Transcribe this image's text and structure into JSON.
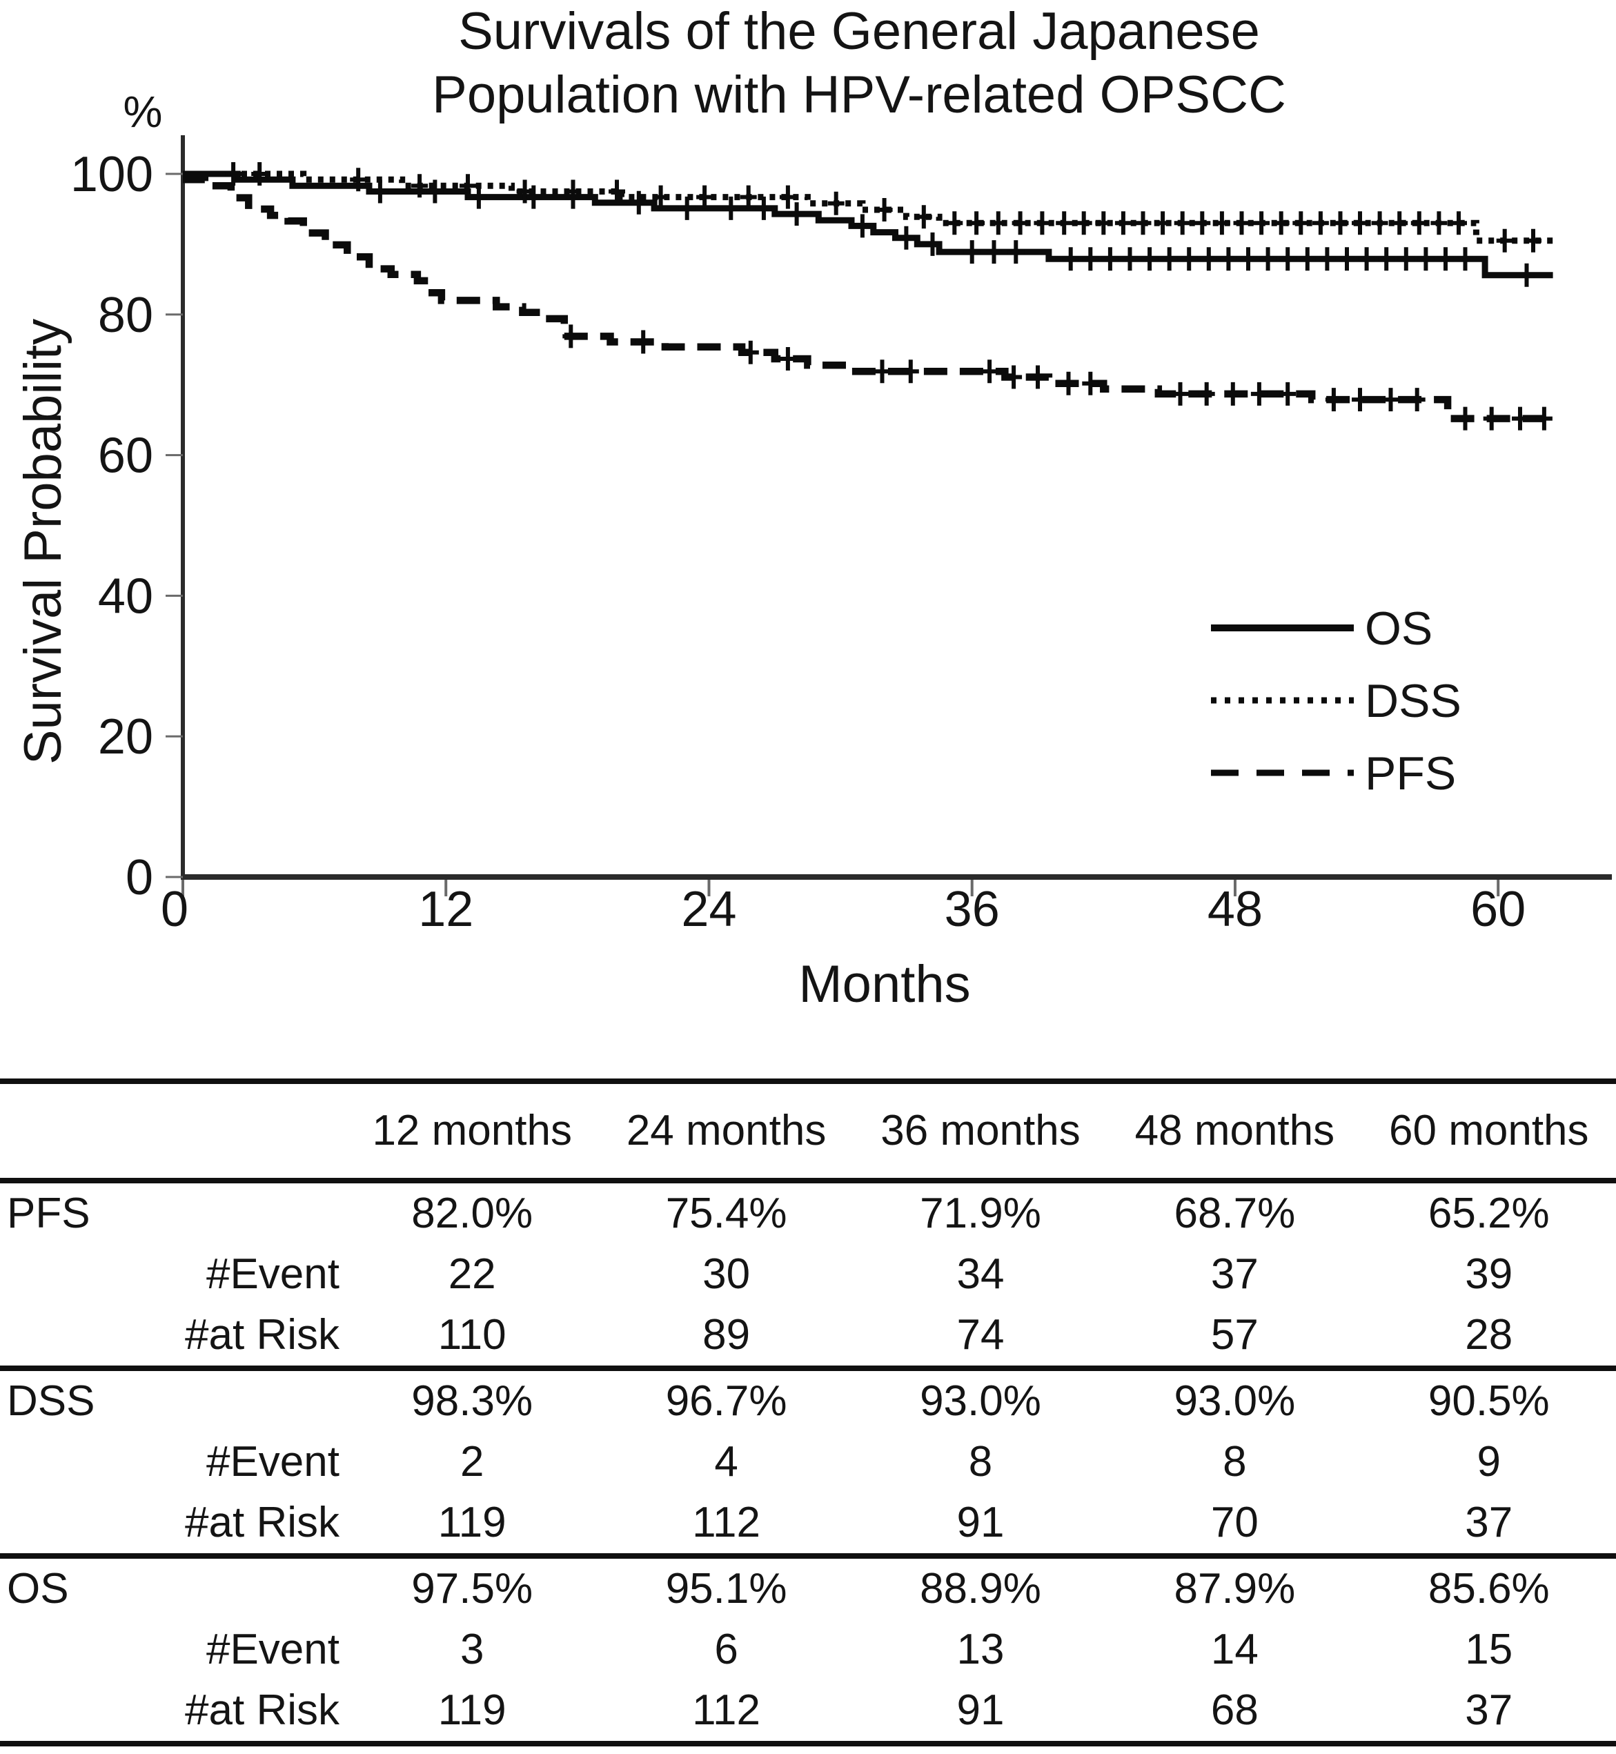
{
  "title": {
    "line1": "Survivals of the General Japanese",
    "line2": "Population with HPV-related OPSCC"
  },
  "chart_data": {
    "type": "line",
    "subtype": "kaplan_meier_step",
    "title": "Survivals of the General Japanese Population with HPV-related OPSCC",
    "xlabel": "Months",
    "ylabel": "Survival Probability",
    "y_unit_label": "%",
    "xlim": [
      0,
      65
    ],
    "ylim": [
      0,
      100
    ],
    "x_ticks": [
      0,
      12,
      24,
      36,
      48,
      60
    ],
    "y_ticks": [
      0,
      20,
      40,
      60,
      80,
      100
    ],
    "grid": false,
    "line_color": "#0b0b0b",
    "curve_end_month": 62.5,
    "legend_position": "inside-right",
    "series": [
      {
        "name": "OS",
        "line_style": "solid",
        "values_at_ticks": {
          "12": 97.5,
          "24": 95.1,
          "36": 88.9,
          "48": 87.9,
          "60": 85.6
        },
        "steps": [
          [
            0,
            100
          ],
          [
            2.5,
            99.2
          ],
          [
            5,
            98.3
          ],
          [
            8.5,
            97.5
          ],
          [
            13,
            96.7
          ],
          [
            18.8,
            95.9
          ],
          [
            21.5,
            95.1
          ],
          [
            27,
            94.3
          ],
          [
            29,
            93.4
          ],
          [
            30.5,
            92.6
          ],
          [
            31.5,
            91.7
          ],
          [
            32.5,
            90.9
          ],
          [
            33.5,
            90.0
          ],
          [
            34.5,
            88.9
          ],
          [
            39.5,
            87.9
          ],
          [
            59.4,
            85.6
          ]
        ],
        "censor_months": [
          2.3,
          9,
          11.5,
          13.5,
          16,
          17.8,
          20.8,
          23,
          25,
          26.5,
          28,
          31,
          33,
          34.2,
          36,
          37,
          38,
          40.5,
          41.4,
          42.3,
          43.2,
          44.1,
          45,
          45.9,
          46.8,
          47.7,
          48.6,
          49.5,
          50.4,
          51.3,
          52.2,
          53.1,
          54,
          54.9,
          55.8,
          56.7,
          57.6,
          58.5,
          61.3
        ]
      },
      {
        "name": "DSS",
        "line_style": "dotted",
        "values_at_ticks": {
          "12": 98.3,
          "24": 96.7,
          "36": 93.0,
          "48": 93.0,
          "60": 90.5
        },
        "steps": [
          [
            0,
            100
          ],
          [
            5.5,
            99.2
          ],
          [
            10,
            98.3
          ],
          [
            15,
            97.5
          ],
          [
            20,
            96.7
          ],
          [
            28.5,
            95.8
          ],
          [
            31,
            94.9
          ],
          [
            33,
            93.9
          ],
          [
            34.5,
            93.0
          ],
          [
            59.0,
            90.5
          ]
        ],
        "censor_months": [
          3.5,
          8,
          10.8,
          13,
          15.6,
          17.8,
          19.8,
          21.8,
          23.8,
          25.8,
          27.6,
          29.8,
          32,
          33.8,
          35.2,
          36.2,
          37.2,
          38.2,
          39.2,
          40.2,
          41.1,
          42,
          42.9,
          43.8,
          44.7,
          45.6,
          46.5,
          47.4,
          48.3,
          49.2,
          50.1,
          51,
          51.9,
          52.8,
          53.7,
          54.6,
          55.5,
          56.4,
          57.3,
          58.2,
          60.3,
          61.6
        ]
      },
      {
        "name": "PFS",
        "line_style": "dashed",
        "values_at_ticks": {
          "12": 82.0,
          "24": 75.4,
          "36": 71.9,
          "48": 68.7,
          "60": 65.2
        },
        "steps": [
          [
            0,
            99.2
          ],
          [
            1,
            98.3
          ],
          [
            2.2,
            96.6
          ],
          [
            3,
            95.0
          ],
          [
            4,
            94.1
          ],
          [
            4.8,
            93.3
          ],
          [
            5.5,
            91.6
          ],
          [
            6.5,
            89.9
          ],
          [
            7.5,
            88.2
          ],
          [
            8.5,
            86.5
          ],
          [
            9.5,
            85.7
          ],
          [
            10.7,
            84.8
          ],
          [
            11.2,
            83.1
          ],
          [
            11.8,
            82.0
          ],
          [
            14.3,
            81.1
          ],
          [
            15.5,
            80.3
          ],
          [
            16.5,
            79.4
          ],
          [
            17.4,
            76.9
          ],
          [
            19.5,
            76.1
          ],
          [
            22,
            75.4
          ],
          [
            25.5,
            74.6
          ],
          [
            27,
            73.7
          ],
          [
            28.5,
            72.8
          ],
          [
            30.5,
            71.9
          ],
          [
            37.5,
            71.1
          ],
          [
            39.5,
            70.2
          ],
          [
            42,
            69.4
          ],
          [
            44.5,
            68.7
          ],
          [
            51.5,
            67.9
          ],
          [
            57.7,
            65.2
          ]
        ],
        "censor_months": [
          17.7,
          21,
          25.9,
          27.6,
          31.9,
          33.2,
          36.8,
          37.9,
          39,
          40.4,
          41.4,
          45.5,
          46.7,
          47.9,
          49.1,
          50.4,
          52.5,
          53.7,
          55.1,
          56.3,
          58.5,
          59.7,
          61,
          62.1
        ]
      }
    ]
  },
  "table": {
    "col_headers": [
      "",
      "12 months",
      "24 months",
      "36 months",
      "48 months",
      "60 months"
    ],
    "row_labels": {
      "event": "#Event",
      "risk": "#at Risk"
    },
    "groups": [
      {
        "name": "PFS",
        "survival": [
          "82.0%",
          "75.4%",
          "71.9%",
          "68.7%",
          "65.2%"
        ],
        "events": [
          "22",
          "30",
          "34",
          "37",
          "39"
        ],
        "at_risk": [
          "110",
          "89",
          "74",
          "57",
          "28"
        ]
      },
      {
        "name": "DSS",
        "survival": [
          "98.3%",
          "96.7%",
          "93.0%",
          "93.0%",
          "90.5%"
        ],
        "events": [
          "2",
          "4",
          "8",
          "8",
          "9"
        ],
        "at_risk": [
          "119",
          "112",
          "91",
          "70",
          "37"
        ]
      },
      {
        "name": "OS",
        "survival": [
          "97.5%",
          "95.1%",
          "88.9%",
          "87.9%",
          "85.6%"
        ],
        "events": [
          "3",
          "6",
          "13",
          "14",
          "15"
        ],
        "at_risk": [
          "119",
          "112",
          "91",
          "68",
          "37"
        ]
      }
    ]
  }
}
